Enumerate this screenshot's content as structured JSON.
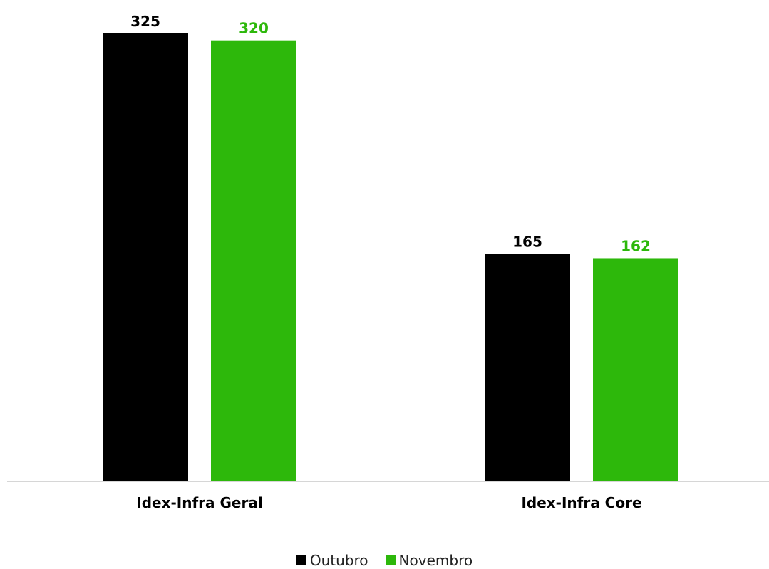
{
  "chart_data": {
    "type": "bar",
    "categories": [
      "Idex-Infra Geral",
      "Idex-Infra Core"
    ],
    "series": [
      {
        "name": "Outubro",
        "values": [
          325,
          165
        ],
        "color": "#000000",
        "label_color": "#000000"
      },
      {
        "name": "Novembro",
        "values": [
          320,
          162
        ],
        "color": "#2db80b",
        "label_color": "#2db80b"
      }
    ],
    "ylim": [
      0,
      325
    ],
    "grid": false,
    "legend_position": "bottom-center"
  }
}
